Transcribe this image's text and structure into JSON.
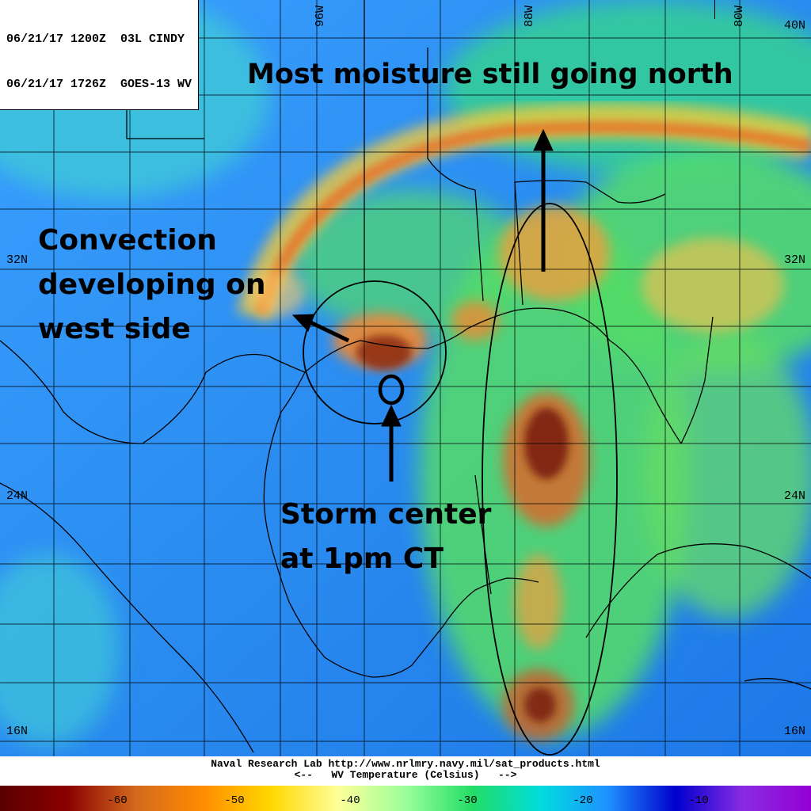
{
  "header": {
    "line1": "06/21/17 1200Z  03L CINDY",
    "line2": "06/21/17 1726Z  GOES-13 WV"
  },
  "annotations": {
    "north": "Most moisture still going north",
    "west_lines": [
      "Convection",
      "developing on",
      "west side"
    ],
    "center_lines": [
      "Storm center",
      "at 1pm CT"
    ]
  },
  "lat_labels": {
    "top_right": "40N",
    "left_32": "32N",
    "right_32": "32N",
    "left_24": "24N",
    "right_24": "24N",
    "left_16": "16N",
    "right_16": "16N"
  },
  "lon_labels": {
    "w96": "96W",
    "w88": "88W",
    "w80": "80W"
  },
  "footer": {
    "credit": "Naval Research Lab http://www.nrlmry.navy.mil/sat_products.html",
    "scale_title": "<--   WV Temperature (Celsius)   -->"
  },
  "colorbar": {
    "ticks": [
      "-60",
      "-50",
      "-40",
      "-30",
      "-20",
      "-10"
    ],
    "colors": [
      "#5a0000",
      "#8b0000",
      "#d2691e",
      "#ff8c00",
      "#ffd700",
      "#ffff99",
      "#9aff9a",
      "#22dd66",
      "#00dddd",
      "#1e90ff",
      "#0000cd",
      "#8a2be2",
      "#9400d3"
    ]
  }
}
